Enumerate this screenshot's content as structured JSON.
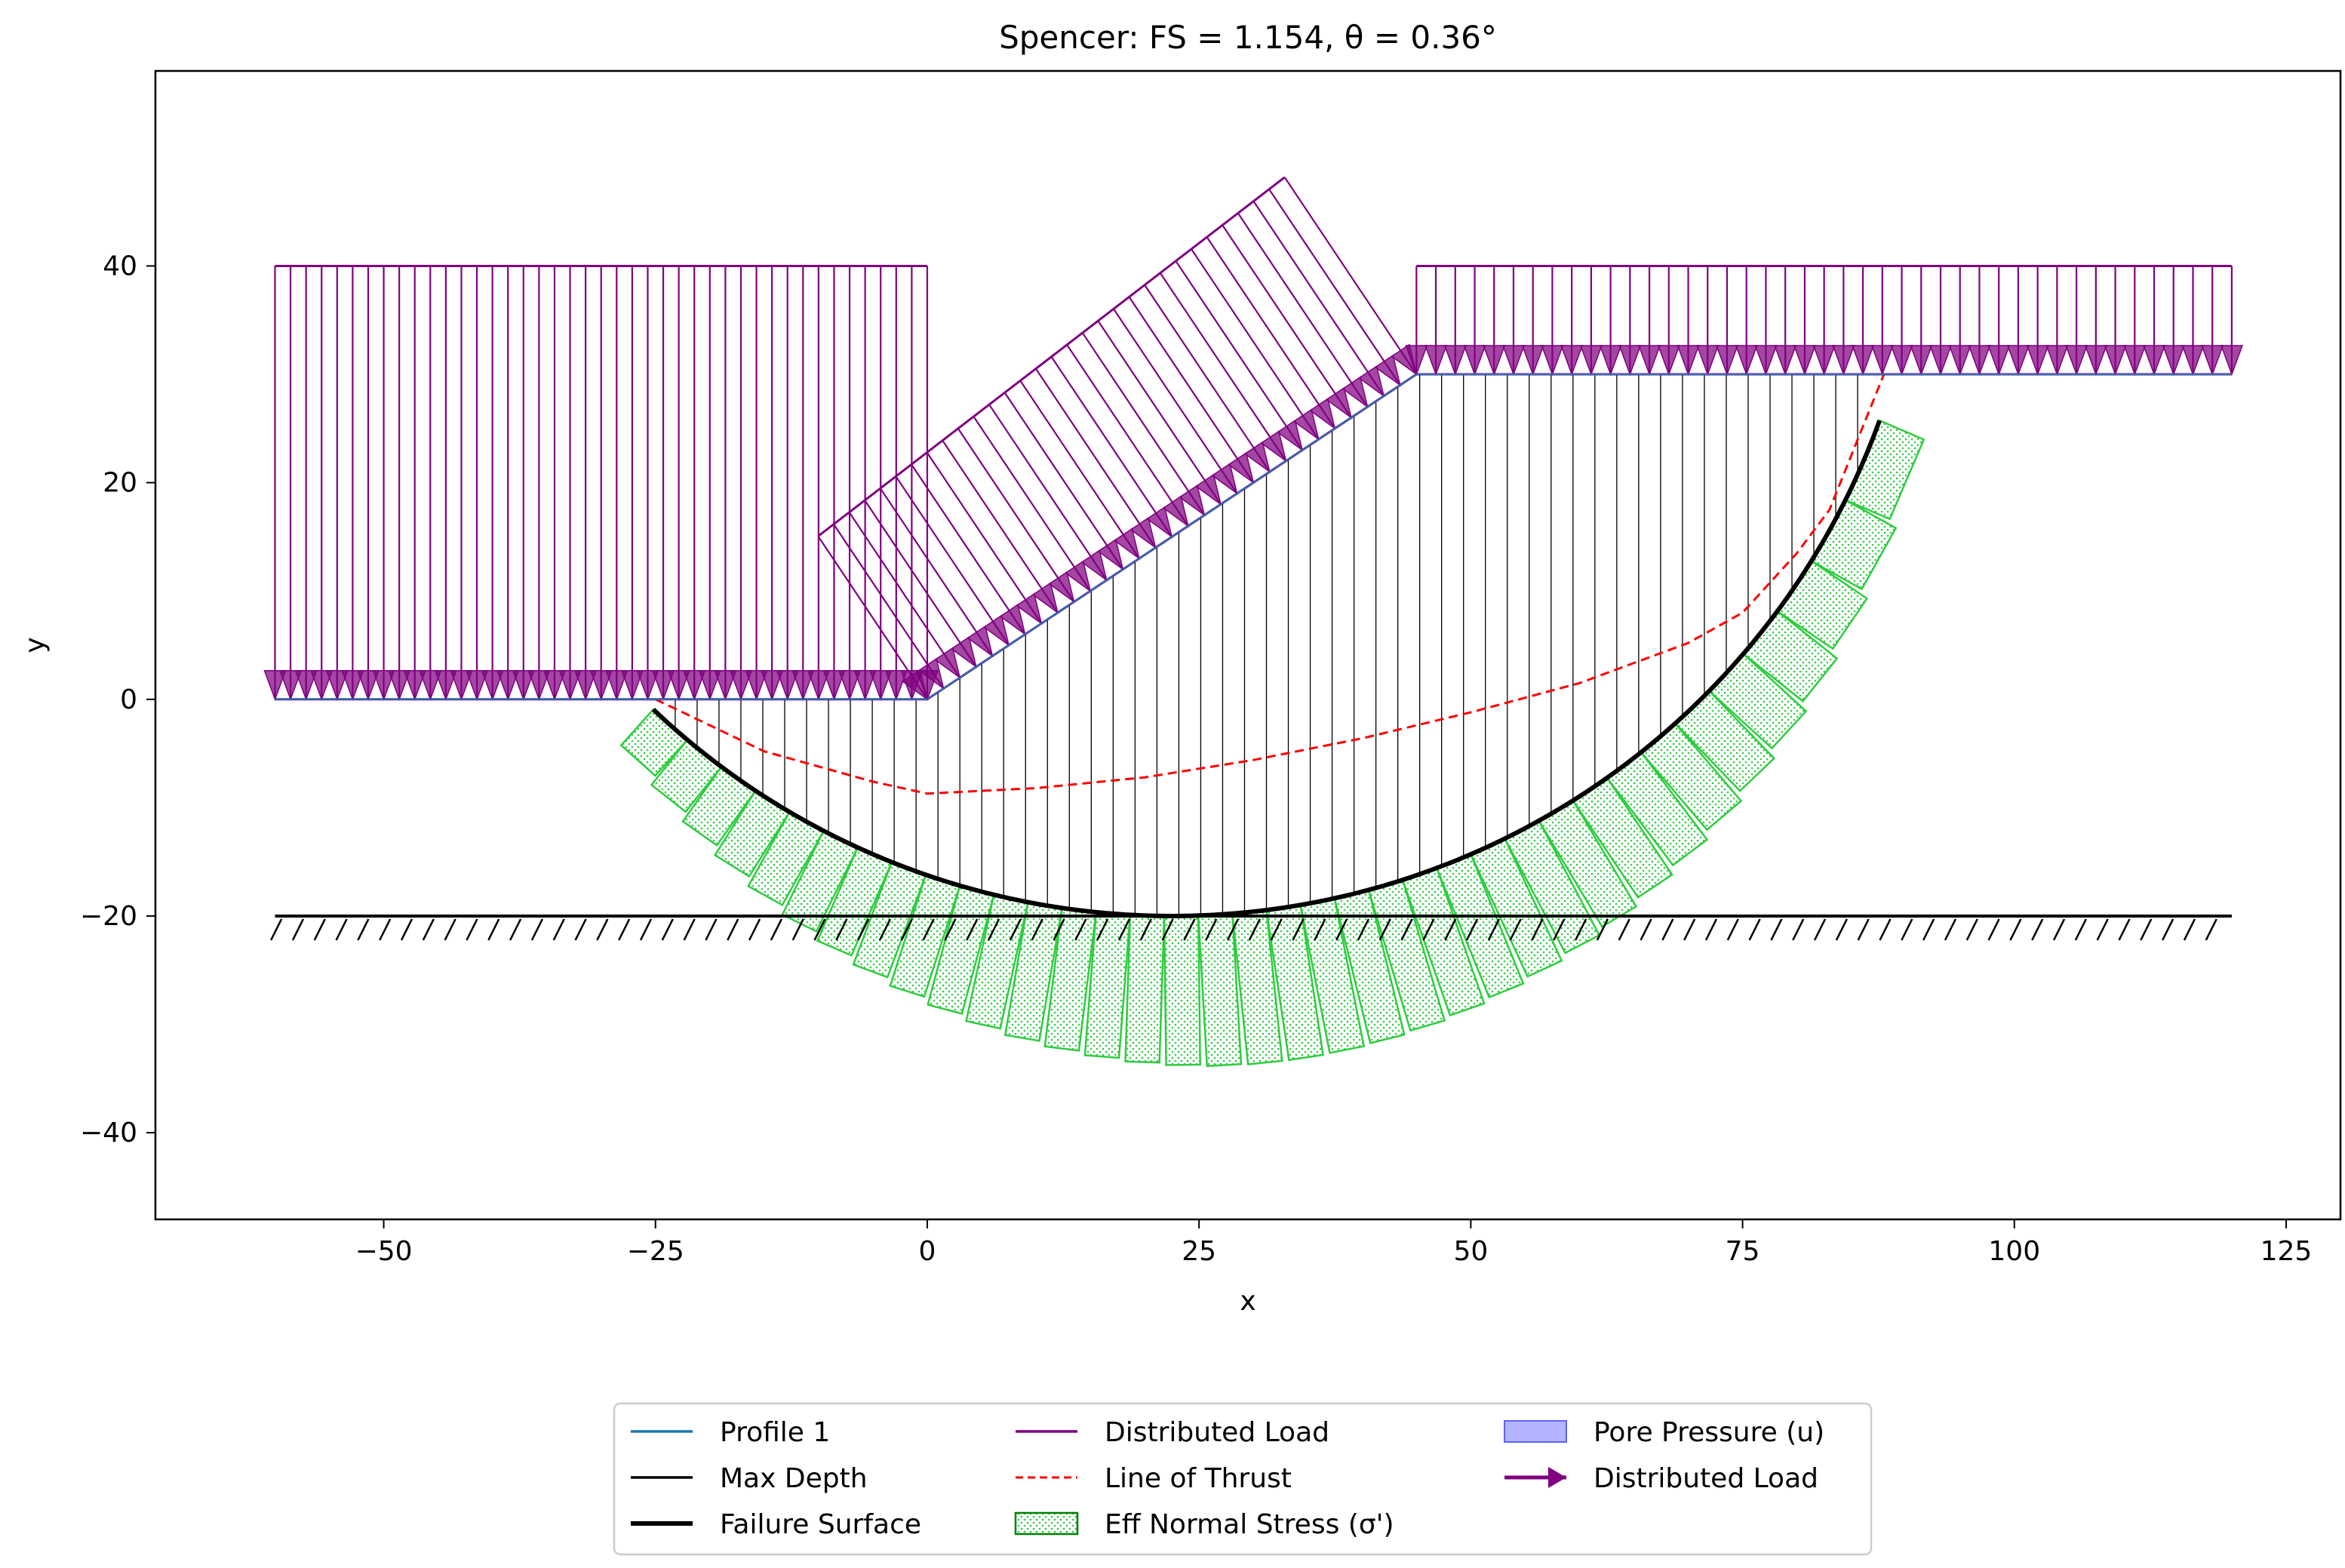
{
  "chart_data": {
    "type": "line",
    "title": "Spencer: FS = 1.154, θ = 0.36°",
    "xlabel": "x",
    "ylabel": "y",
    "xlim": [
      -71,
      130
    ],
    "ylim": [
      -48,
      58
    ],
    "xticks": [
      -50,
      -25,
      0,
      25,
      50,
      75,
      100,
      125
    ],
    "yticks": [
      -40,
      -20,
      0,
      20,
      40
    ],
    "x_tick_labels": [
      "−50",
      "−25",
      "0",
      "25",
      "50",
      "75",
      "100",
      "125"
    ],
    "y_tick_labels": [
      "−40",
      "−20",
      "0",
      "20",
      "40"
    ],
    "grid": false,
    "profile": {
      "name": "Profile 1",
      "points": [
        [
          -60,
          0
        ],
        [
          0,
          0
        ],
        [
          45,
          30
        ],
        [
          120,
          30
        ]
      ]
    },
    "max_depth": {
      "name": "Max Depth",
      "y": -20,
      "x_range": [
        -60,
        120
      ]
    },
    "failure_surface": {
      "name": "Failure Surface",
      "type": "circle",
      "center": [
        22.5,
        49.2
      ],
      "radius": 69.2,
      "x_range": [
        -25.2,
        87.6
      ]
    },
    "line_of_thrust": {
      "name": "Line of Thrust",
      "points": [
        [
          -25,
          0
        ],
        [
          -15,
          -4.8
        ],
        [
          -5,
          -7.6
        ],
        [
          0,
          -8.7
        ],
        [
          10,
          -8.2
        ],
        [
          20,
          -7.2
        ],
        [
          30,
          -5.6
        ],
        [
          40,
          -3.6
        ],
        [
          50,
          -1.2
        ],
        [
          60,
          1.5
        ],
        [
          70,
          5.2
        ],
        [
          75,
          8.0
        ],
        [
          80,
          13.5
        ],
        [
          83,
          17.5
        ],
        [
          86,
          25.0
        ],
        [
          88,
          30.0
        ]
      ]
    },
    "distributed_loads": [
      {
        "name": "Distributed Load",
        "x_range": [
          -60,
          0
        ],
        "surface_y": 0,
        "magnitude": 40
      },
      {
        "name": "Distributed Load",
        "x_range": [
          0,
          45
        ],
        "surface": "slope",
        "normal_length": [
          7.7,
          9.3
        ]
      },
      {
        "name": "Distributed Load",
        "x_range": [
          45,
          120
        ],
        "surface_y": 30,
        "magnitude": 10
      }
    ],
    "effective_normal_stress": {
      "name": "Eff Normal Stress (σ')",
      "slice_count": 36,
      "stress_depth_range": [
        4,
        14
      ]
    },
    "legend": {
      "placement": "bottom-center",
      "entries": [
        {
          "label": "Profile 1",
          "marker": "line",
          "color": "#1f77b4"
        },
        {
          "label": "Max Depth",
          "marker": "line",
          "color": "#000000"
        },
        {
          "label": "Failure Surface",
          "marker": "thick-line",
          "color": "#000000"
        },
        {
          "label": "Distributed Load",
          "marker": "line",
          "color": "#800080"
        },
        {
          "label": "Line of Thrust",
          "marker": "dashed-line",
          "color": "#ff0000"
        },
        {
          "label": "Eff Normal Stress (σ')",
          "marker": "hatched-patch",
          "color": "#2ecc40"
        },
        {
          "label": "Pore Pressure (u)",
          "marker": "patch",
          "color": "#8080ff"
        },
        {
          "label": "Distributed Load",
          "marker": "arrow",
          "color": "#800080"
        }
      ]
    },
    "colors": {
      "profile": "#1f77b4",
      "failure": "#000000",
      "load": "#800080",
      "thrust": "#ff0000",
      "stress": "#2ecc40",
      "pore": "#8080ff"
    }
  }
}
